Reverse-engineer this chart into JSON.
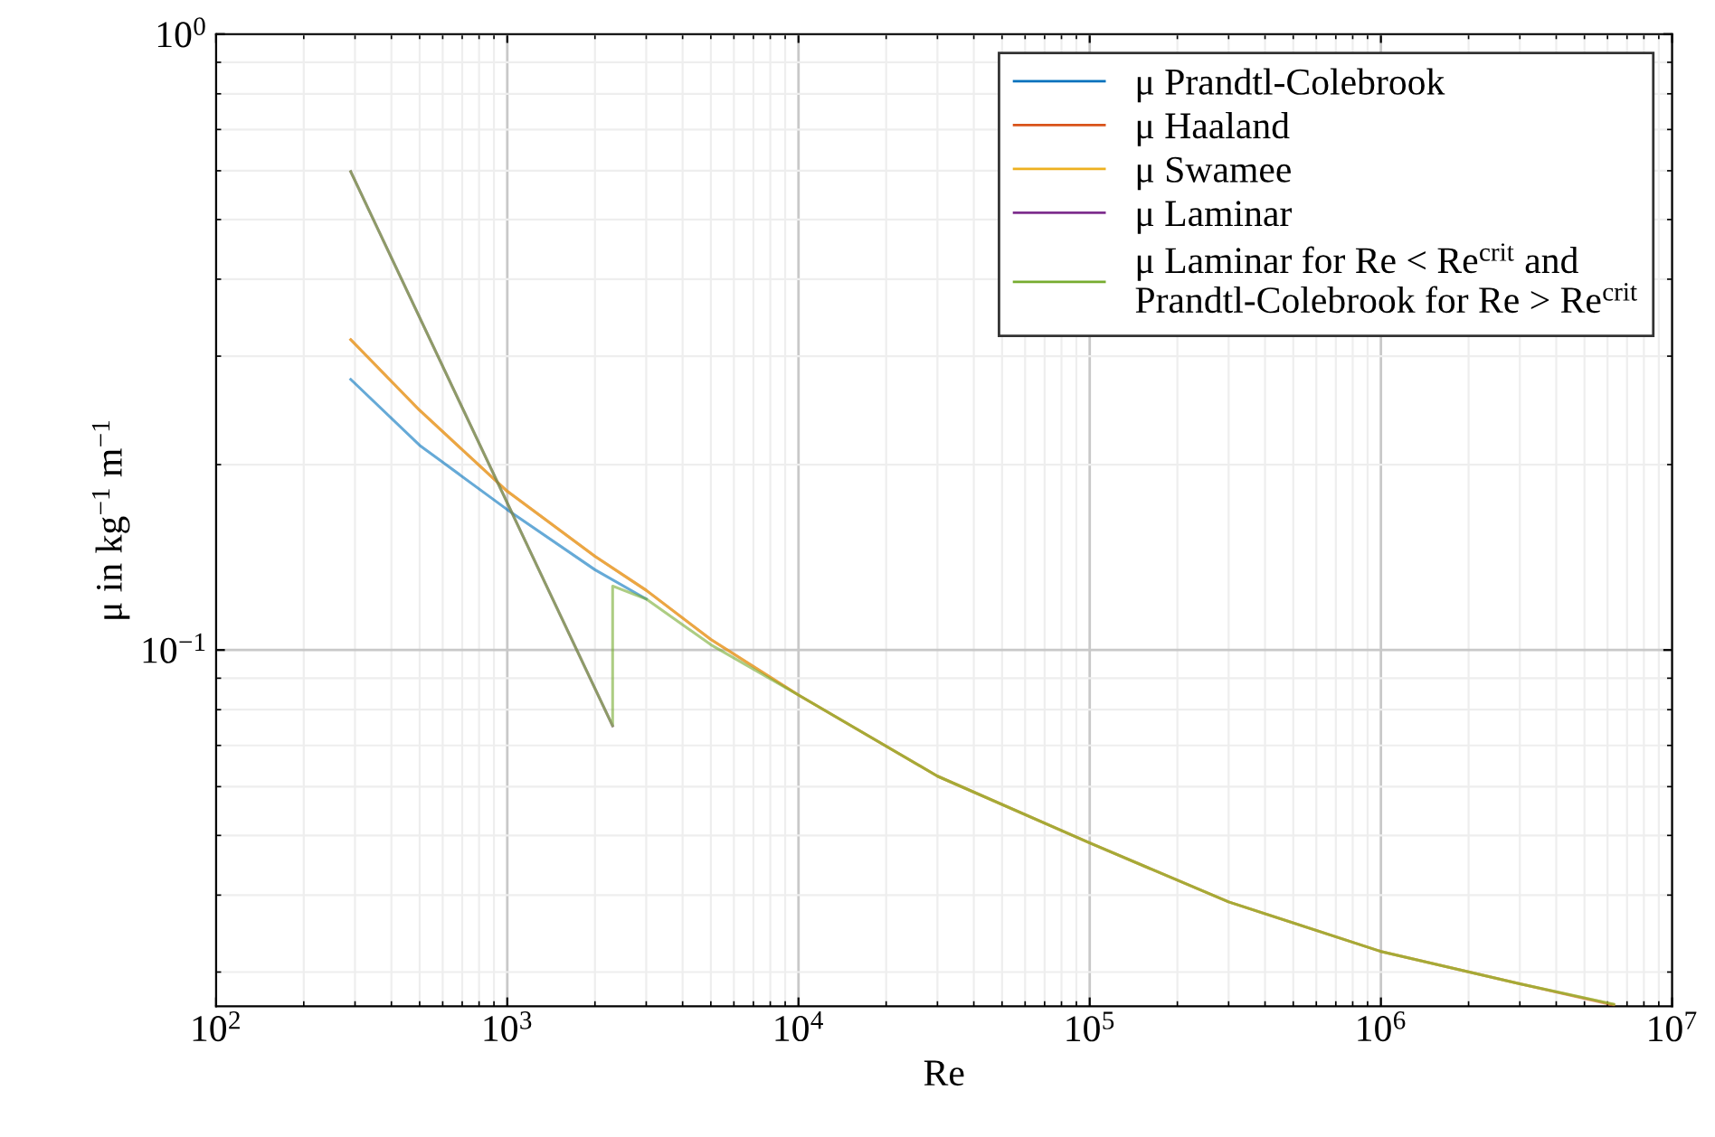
{
  "chart_data": {
    "type": "line",
    "xlabel": "Re",
    "ylabel": "μ in kg$^{−1}$ m$^{−1}$",
    "log": "xy",
    "grid": true,
    "legend": "top right",
    "marker": "none",
    "line_style": "solid",
    "xlim": [
      100,
      10000000
    ],
    "xticks": [
      {
        "value": 100,
        "label": "10$^{2}$"
      },
      {
        "value": 1000,
        "label": "10$^{3}$"
      },
      {
        "value": 10000,
        "label": "10$^{4}$"
      },
      {
        "value": 100000,
        "label": "10$^{5}$"
      },
      {
        "value": 1000000,
        "label": "10$^{6}$"
      },
      {
        "value": 10000000,
        "label": "10$^{7}$"
      }
    ],
    "ylim": [
      0.0264,
      1
    ],
    "yticks": [
      {
        "value": 0.1,
        "label": "10$^{−1}$"
      },
      {
        "value": 1,
        "label": "10$^{0}$"
      }
    ],
    "series": [
      {
        "name": "μ Prandtl-Colebrook",
        "color": "#0072bd",
        "x": [
          290,
          500,
          1000,
          2000,
          3000
        ],
        "values": [
          0.275,
          0.215,
          0.169,
          0.135,
          0.121
        ]
      },
      {
        "name": "μ Haaland",
        "color": "#d95319",
        "x": [
          290,
          500,
          1000,
          2000,
          3000,
          5000,
          10000,
          30000,
          100000,
          300000,
          1000000,
          3000000,
          6300000
        ],
        "values": [
          0.319,
          0.245,
          0.181,
          0.142,
          0.125,
          0.104,
          0.0845,
          0.0624,
          0.0486,
          0.039,
          0.0324,
          0.0287,
          0.0265
        ]
      },
      {
        "name": "μ Swamee",
        "color": "#edb120",
        "x": [
          290,
          500,
          1000,
          2000,
          3000,
          5000,
          10000,
          30000,
          100000,
          300000,
          1000000,
          3000000,
          6300000
        ],
        "values": [
          0.319,
          0.245,
          0.181,
          0.142,
          0.125,
          0.104,
          0.0845,
          0.0624,
          0.0486,
          0.039,
          0.0324,
          0.0287,
          0.0266
        ]
      },
      {
        "name": "μ Laminar",
        "color": "#7e2f8e",
        "x": [
          290,
          2300
        ],
        "values": [
          0.598,
          0.0753
        ]
      },
      {
        "name": "μ Laminar for Re < Re$^{crit}$ and\nPrandtl-Colebrook for Re > Re$^{crit}$",
        "color": "#77ac30",
        "x": [
          290,
          2300,
          2300,
          3000,
          5000,
          10000,
          30000,
          100000,
          300000,
          1000000,
          3000000,
          6300000
        ],
        "values": [
          0.598,
          0.0753,
          0.127,
          0.121,
          0.102,
          0.0845,
          0.0624,
          0.0486,
          0.039,
          0.0324,
          0.0287,
          0.0266
        ]
      }
    ]
  }
}
